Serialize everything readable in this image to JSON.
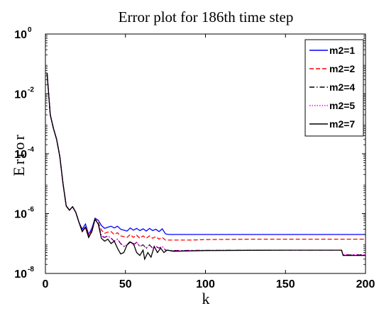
{
  "chart_data": {
    "type": "line",
    "title": "Error plot for 186th time step",
    "xlabel": "k",
    "ylabel": "Error",
    "xlim": [
      0,
      200
    ],
    "ylim": [
      1e-08,
      1
    ],
    "yscale": "log",
    "xticks": [
      0,
      50,
      100,
      150,
      200
    ],
    "yticks": [
      {
        "base": "10",
        "exp": "0",
        "value": 1
      },
      {
        "base": "10",
        "exp": "-2",
        "value": 0.01
      },
      {
        "base": "10",
        "exp": "-4",
        "value": 0.0001
      },
      {
        "base": "10",
        "exp": "-6",
        "value": 1e-06
      },
      {
        "base": "10",
        "exp": "-8",
        "value": 1e-08
      }
    ],
    "legend_position": "top-right",
    "grid": false,
    "series": [
      {
        "name": "m2=1",
        "color": "#0000ff",
        "dash": "solid",
        "points": [
          [
            1,
            0.05
          ],
          [
            3,
            0.002
          ],
          [
            5,
            0.0007
          ],
          [
            7,
            0.0003
          ],
          [
            9,
            8e-05
          ],
          [
            11,
            1e-05
          ],
          [
            13,
            1.8e-06
          ],
          [
            15,
            1.3e-06
          ],
          [
            17,
            1.7e-06
          ],
          [
            19,
            1.1e-06
          ],
          [
            21,
            5e-07
          ],
          [
            23,
            3e-07
          ],
          [
            25,
            4.5e-07
          ],
          [
            27,
            2e-07
          ],
          [
            29,
            3.2e-07
          ],
          [
            31,
            7e-07
          ],
          [
            33,
            6e-07
          ],
          [
            35,
            4e-07
          ],
          [
            37,
            3.2e-07
          ],
          [
            39,
            3.5e-07
          ],
          [
            41,
            3.8e-07
          ],
          [
            43,
            3.3e-07
          ],
          [
            45,
            3.8e-07
          ],
          [
            47,
            3e-07
          ],
          [
            49,
            2.8e-07
          ],
          [
            51,
            2.6e-07
          ],
          [
            53,
            3.3e-07
          ],
          [
            55,
            2.8e-07
          ],
          [
            57,
            3.2e-07
          ],
          [
            59,
            2.7e-07
          ],
          [
            61,
            3.1e-07
          ],
          [
            63,
            2.6e-07
          ],
          [
            65,
            3.2e-07
          ],
          [
            67,
            2.7e-07
          ],
          [
            69,
            3e-07
          ],
          [
            71,
            2.5e-07
          ],
          [
            73,
            3.1e-07
          ],
          [
            75,
            2.1e-07
          ],
          [
            77,
            2e-07
          ],
          [
            80,
            2e-07
          ],
          [
            100,
            2e-07
          ],
          [
            150,
            2e-07
          ],
          [
            200,
            2e-07
          ]
        ]
      },
      {
        "name": "m2=2",
        "color": "#ff0000",
        "dash": "dashed",
        "points": [
          [
            1,
            0.05
          ],
          [
            3,
            0.002
          ],
          [
            5,
            0.0007
          ],
          [
            7,
            0.0003
          ],
          [
            9,
            8e-05
          ],
          [
            11,
            1e-05
          ],
          [
            13,
            1.8e-06
          ],
          [
            15,
            1.3e-06
          ],
          [
            17,
            1.7e-06
          ],
          [
            19,
            1.1e-06
          ],
          [
            21,
            5e-07
          ],
          [
            23,
            2.5e-07
          ],
          [
            25,
            3.8e-07
          ],
          [
            27,
            1.8e-07
          ],
          [
            29,
            2.8e-07
          ],
          [
            31,
            6.5e-07
          ],
          [
            33,
            5e-07
          ],
          [
            35,
            2.8e-07
          ],
          [
            37,
            2.2e-07
          ],
          [
            39,
            2.4e-07
          ],
          [
            41,
            2.5e-07
          ],
          [
            43,
            2e-07
          ],
          [
            45,
            2.3e-07
          ],
          [
            47,
            1.8e-07
          ],
          [
            49,
            1.7e-07
          ],
          [
            51,
            1.6e-07
          ],
          [
            53,
            2e-07
          ],
          [
            55,
            1.6e-07
          ],
          [
            57,
            1.9e-07
          ],
          [
            59,
            1.5e-07
          ],
          [
            61,
            1.8e-07
          ],
          [
            63,
            1.5e-07
          ],
          [
            65,
            1.8e-07
          ],
          [
            67,
            1.5e-07
          ],
          [
            69,
            1.7e-07
          ],
          [
            71,
            1.4e-07
          ],
          [
            73,
            1.6e-07
          ],
          [
            75,
            1.3e-07
          ],
          [
            80,
            1.3e-07
          ],
          [
            90,
            1.3e-07
          ],
          [
            100,
            1.35e-07
          ],
          [
            130,
            1.4e-07
          ],
          [
            150,
            1.4e-07
          ],
          [
            200,
            1.4e-07
          ]
        ]
      },
      {
        "name": "m2=4",
        "color": "#000000",
        "dash": "dashdot",
        "points": [
          [
            1,
            0.05
          ],
          [
            3,
            0.002
          ],
          [
            5,
            0.0007
          ],
          [
            7,
            0.0003
          ],
          [
            9,
            8e-05
          ],
          [
            11,
            1e-05
          ],
          [
            13,
            1.8e-06
          ],
          [
            15,
            1.3e-06
          ],
          [
            17,
            1.7e-06
          ],
          [
            19,
            1.1e-06
          ],
          [
            21,
            5e-07
          ],
          [
            23,
            2.5e-07
          ],
          [
            25,
            3.5e-07
          ],
          [
            27,
            1.6e-07
          ],
          [
            29,
            2.5e-07
          ],
          [
            31,
            6.5e-07
          ],
          [
            33,
            4.5e-07
          ],
          [
            35,
            1.8e-07
          ],
          [
            37,
            1.6e-07
          ],
          [
            39,
            1.8e-07
          ],
          [
            41,
            1.5e-07
          ],
          [
            43,
            1.2e-07
          ],
          [
            45,
            1.4e-07
          ],
          [
            47,
            1e-07
          ],
          [
            49,
            8e-08
          ],
          [
            51,
            9e-08
          ],
          [
            53,
            1.2e-07
          ],
          [
            55,
            9e-08
          ],
          [
            57,
            1.1e-07
          ],
          [
            59,
            8e-08
          ],
          [
            61,
            9e-08
          ],
          [
            63,
            7e-08
          ],
          [
            65,
            9e-08
          ],
          [
            67,
            7e-08
          ],
          [
            69,
            8e-08
          ],
          [
            71,
            7e-08
          ],
          [
            73,
            8e-08
          ],
          [
            75,
            6e-08
          ],
          [
            80,
            5.8e-08
          ],
          [
            100,
            5.9e-08
          ],
          [
            150,
            6e-08
          ],
          [
            185,
            6e-08
          ],
          [
            186,
            4.2e-08
          ],
          [
            200,
            4.2e-08
          ]
        ]
      },
      {
        "name": "m2=5",
        "color": "#ff00ff",
        "dash": "dotted",
        "points": [
          [
            1,
            0.05
          ],
          [
            3,
            0.002
          ],
          [
            5,
            0.0007
          ],
          [
            7,
            0.0003
          ],
          [
            9,
            8e-05
          ],
          [
            11,
            1e-05
          ],
          [
            13,
            1.8e-06
          ],
          [
            15,
            1.3e-06
          ],
          [
            17,
            1.7e-06
          ],
          [
            19,
            1.1e-06
          ],
          [
            21,
            5e-07
          ],
          [
            23,
            2.5e-07
          ],
          [
            25,
            3.5e-07
          ],
          [
            27,
            1.6e-07
          ],
          [
            29,
            2.5e-07
          ],
          [
            31,
            6.5e-07
          ],
          [
            33,
            4.5e-07
          ],
          [
            35,
            1.8e-07
          ],
          [
            37,
            1.6e-07
          ],
          [
            39,
            1.8e-07
          ],
          [
            41,
            1.5e-07
          ],
          [
            43,
            1.2e-07
          ],
          [
            45,
            1.4e-07
          ],
          [
            47,
            1e-07
          ],
          [
            49,
            8e-08
          ],
          [
            51,
            9e-08
          ],
          [
            53,
            1.2e-07
          ],
          [
            55,
            9e-08
          ],
          [
            57,
            1.1e-07
          ],
          [
            59,
            8e-08
          ],
          [
            61,
            9e-08
          ],
          [
            63,
            7e-08
          ],
          [
            65,
            9e-08
          ],
          [
            67,
            7e-08
          ],
          [
            69,
            8e-08
          ],
          [
            71,
            7e-08
          ],
          [
            73,
            8e-08
          ],
          [
            75,
            6e-08
          ],
          [
            80,
            5.8e-08
          ],
          [
            100,
            5.9e-08
          ],
          [
            150,
            6e-08
          ],
          [
            185,
            6e-08
          ],
          [
            186,
            4.2e-08
          ],
          [
            200,
            4.2e-08
          ]
        ]
      },
      {
        "name": "m2=7",
        "color": "#000000",
        "dash": "solid",
        "points": [
          [
            1,
            0.05
          ],
          [
            3,
            0.002
          ],
          [
            5,
            0.0007
          ],
          [
            7,
            0.0003
          ],
          [
            9,
            8e-05
          ],
          [
            11,
            1e-05
          ],
          [
            13,
            1.8e-06
          ],
          [
            15,
            1.3e-06
          ],
          [
            17,
            1.7e-06
          ],
          [
            19,
            1.1e-06
          ],
          [
            21,
            5e-07
          ],
          [
            23,
            2.5e-07
          ],
          [
            25,
            3.5e-07
          ],
          [
            27,
            1.6e-07
          ],
          [
            29,
            2.5e-07
          ],
          [
            31,
            6.5e-07
          ],
          [
            33,
            4.5e-07
          ],
          [
            35,
            1.5e-07
          ],
          [
            37,
            1.2e-07
          ],
          [
            39,
            1.4e-07
          ],
          [
            41,
            1e-07
          ],
          [
            43,
            1.2e-07
          ],
          [
            45,
            7e-08
          ],
          [
            47,
            4.5e-08
          ],
          [
            49,
            5e-08
          ],
          [
            51,
            9e-08
          ],
          [
            53,
            1.1e-07
          ],
          [
            55,
            1e-07
          ],
          [
            57,
            5e-08
          ],
          [
            59,
            4e-08
          ],
          [
            61,
            6e-08
          ],
          [
            62,
            3e-08
          ],
          [
            64,
            5e-08
          ],
          [
            66,
            3.5e-08
          ],
          [
            68,
            8e-08
          ],
          [
            70,
            5e-08
          ],
          [
            72,
            7e-08
          ],
          [
            74,
            5e-08
          ],
          [
            76,
            6e-08
          ],
          [
            80,
            5.5e-08
          ],
          [
            100,
            5.8e-08
          ],
          [
            150,
            6e-08
          ],
          [
            185,
            6e-08
          ],
          [
            186,
            4e-08
          ],
          [
            200,
            4e-08
          ]
        ]
      }
    ]
  }
}
